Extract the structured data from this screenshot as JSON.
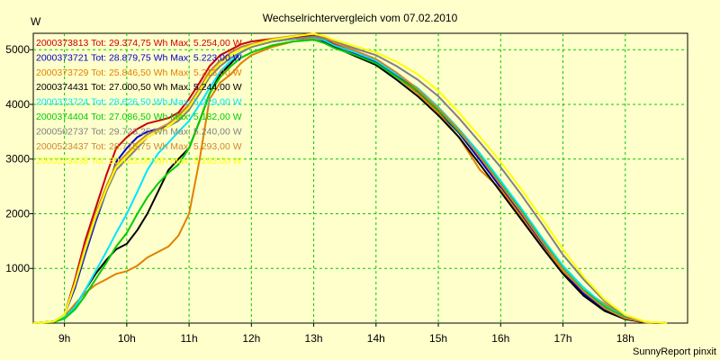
{
  "chart_data": {
    "type": "line",
    "title": "Wechselrichtervergleich vom 07.02.2010",
    "ylabel": "W",
    "xlabel": "",
    "credit": "SunnyReport pinxit",
    "xlim": [
      8.5,
      19.0
    ],
    "ylim": [
      0,
      5300
    ],
    "x_ticks": [
      9,
      10,
      11,
      12,
      13,
      14,
      15,
      16,
      17,
      18
    ],
    "x_tick_labels": [
      "9h",
      "10h",
      "11h",
      "12h",
      "13h",
      "14h",
      "15h",
      "16h",
      "17h",
      "18h"
    ],
    "y_ticks": [
      1000,
      2000,
      3000,
      4000,
      5000
    ],
    "y_tick_labels": [
      "1000",
      "2000",
      "3000",
      "4000",
      "5000"
    ],
    "grid": true,
    "legend_position": "top-left",
    "series": [
      {
        "name": "2000373813 Tot: 29.374,75 Wh Max: 5.254,00 W",
        "color": "#cc0000",
        "x": [
          8.5,
          8.83,
          9.0,
          9.17,
          9.33,
          9.5,
          9.67,
          9.83,
          10.0,
          10.17,
          10.33,
          10.5,
          10.67,
          10.83,
          11.0,
          11.17,
          11.33,
          11.5,
          11.67,
          11.83,
          12.0,
          12.33,
          12.67,
          13.0,
          13.17,
          13.33,
          13.67,
          14.0,
          14.33,
          14.67,
          15.0,
          15.33,
          15.67,
          16.0,
          16.33,
          16.67,
          17.0,
          17.33,
          17.67,
          18.0,
          18.33,
          18.67
        ],
        "y": [
          0,
          30,
          150,
          800,
          1500,
          2100,
          2700,
          3200,
          3400,
          3550,
          3650,
          3700,
          3750,
          3850,
          4100,
          4400,
          4700,
          4900,
          5000,
          5100,
          5150,
          5200,
          5230,
          5254,
          5200,
          5100,
          4950,
          4800,
          4550,
          4250,
          3900,
          3500,
          3000,
          2500,
          2000,
          1450,
          950,
          550,
          250,
          80,
          10,
          0
        ]
      },
      {
        "name": "2000373721 Tot: 28.879,75 Wh Max: 5.223,00 W",
        "color": "#0000cc",
        "x": [
          8.5,
          8.83,
          9.0,
          9.17,
          9.33,
          9.5,
          9.67,
          9.83,
          10.0,
          10.17,
          10.33,
          10.5,
          10.67,
          10.83,
          11.0,
          11.17,
          11.33,
          11.5,
          11.67,
          11.83,
          12.0,
          12.33,
          12.67,
          13.0,
          13.17,
          13.33,
          13.67,
          14.0,
          14.33,
          14.67,
          15.0,
          15.33,
          15.67,
          16.0,
          16.33,
          16.67,
          17.0,
          17.33,
          17.67,
          18.0,
          18.33,
          18.67
        ],
        "y": [
          0,
          30,
          150,
          650,
          1250,
          1850,
          2400,
          2950,
          3200,
          3400,
          3500,
          3550,
          3600,
          3750,
          4000,
          4300,
          4600,
          4800,
          4950,
          5050,
          5100,
          5150,
          5200,
          5223,
          5180,
          5080,
          4930,
          4780,
          4520,
          4220,
          3870,
          3480,
          2980,
          2480,
          1980,
          1430,
          930,
          540,
          240,
          70,
          10,
          0
        ]
      },
      {
        "name": "2000373729 Tot: 25.846,50 Wh Max: 5.213,00 W",
        "color": "#e08000",
        "x": [
          8.5,
          8.83,
          9.0,
          9.17,
          9.33,
          9.5,
          9.67,
          9.83,
          10.0,
          10.17,
          10.33,
          10.5,
          10.67,
          10.83,
          11.0,
          11.17,
          11.33,
          11.5,
          11.67,
          11.83,
          12.0,
          12.33,
          12.67,
          13.0,
          13.17,
          13.33,
          13.67,
          14.0,
          14.33,
          14.67,
          15.0,
          15.33,
          15.67,
          16.0,
          16.33,
          16.67,
          17.0,
          17.33,
          17.67,
          18.0,
          18.33,
          18.67
        ],
        "y": [
          0,
          30,
          120,
          350,
          550,
          700,
          800,
          900,
          950,
          1050,
          1200,
          1300,
          1400,
          1600,
          2000,
          3000,
          4100,
          4400,
          4550,
          4750,
          4900,
          5050,
          5150,
          5213,
          5150,
          5050,
          4900,
          4750,
          4500,
          4200,
          3850,
          3400,
          2800,
          2450,
          1950,
          1400,
          950,
          600,
          350,
          120,
          20,
          0
        ]
      },
      {
        "name": "2000374431 Tot: 27.000,50 Wh Max: 5.244,00 W",
        "color": "#000000",
        "x": [
          8.5,
          8.83,
          9.0,
          9.17,
          9.33,
          9.5,
          9.67,
          9.83,
          10.0,
          10.17,
          10.33,
          10.5,
          10.67,
          10.83,
          11.0,
          11.17,
          11.33,
          11.5,
          11.67,
          11.83,
          12.0,
          12.33,
          12.67,
          13.0,
          13.17,
          13.33,
          13.67,
          14.0,
          14.33,
          14.67,
          15.0,
          15.33,
          15.67,
          16.0,
          16.33,
          16.67,
          17.0,
          17.33,
          17.67,
          18.0,
          18.33,
          18.67
        ],
        "y": [
          0,
          30,
          100,
          300,
          600,
          900,
          1150,
          1350,
          1450,
          1700,
          2000,
          2400,
          2800,
          3000,
          3200,
          3700,
          4200,
          4550,
          4750,
          4950,
          5050,
          5150,
          5200,
          5244,
          5150,
          5050,
          4880,
          4720,
          4450,
          4150,
          3800,
          3400,
          2900,
          2400,
          1900,
          1380,
          900,
          500,
          220,
          70,
          10,
          0
        ]
      },
      {
        "name": "2000373724 Tot: 28.626,50 Wh Max: 5.229,00 W",
        "color": "#00e5ff",
        "x": [
          8.5,
          8.83,
          9.0,
          9.17,
          9.33,
          9.5,
          9.67,
          9.83,
          10.0,
          10.17,
          10.33,
          10.5,
          10.67,
          10.83,
          11.0,
          11.17,
          11.33,
          11.5,
          11.67,
          11.83,
          12.0,
          12.33,
          12.67,
          13.0,
          13.17,
          13.33,
          13.67,
          14.0,
          14.33,
          14.67,
          15.0,
          15.33,
          15.67,
          16.0,
          16.33,
          16.67,
          17.0,
          17.33,
          17.67,
          18.0,
          18.33,
          18.67
        ],
        "y": [
          0,
          30,
          100,
          300,
          600,
          950,
          1300,
          1650,
          2000,
          2400,
          2800,
          3100,
          3300,
          3500,
          3700,
          4000,
          4300,
          4600,
          4800,
          4950,
          5050,
          5150,
          5200,
          5229,
          5170,
          5080,
          4950,
          4800,
          4550,
          4300,
          3950,
          3550,
          3100,
          2600,
          2100,
          1550,
          1050,
          650,
          320,
          110,
          20,
          0
        ]
      },
      {
        "name": "2000374404 Tot: 27.086,50 Wh Max: 5.182,00 W",
        "color": "#00cc00",
        "x": [
          8.5,
          8.83,
          9.0,
          9.17,
          9.33,
          9.5,
          9.67,
          9.83,
          10.0,
          10.17,
          10.33,
          10.5,
          10.67,
          10.83,
          11.0,
          11.17,
          11.33,
          11.5,
          11.67,
          11.83,
          12.0,
          12.33,
          12.67,
          13.0,
          13.17,
          13.33,
          13.67,
          14.0,
          14.33,
          14.67,
          15.0,
          15.33,
          15.67,
          16.0,
          16.33,
          16.67,
          17.0,
          17.33,
          17.67,
          18.0,
          18.33,
          18.67
        ],
        "y": [
          0,
          20,
          80,
          250,
          500,
          800,
          1100,
          1400,
          1650,
          2000,
          2300,
          2550,
          2750,
          2900,
          3200,
          3700,
          4200,
          4500,
          4700,
          4850,
          4950,
          5080,
          5150,
          5182,
          5120,
          5030,
          4900,
          4750,
          4500,
          4250,
          3900,
          3500,
          3050,
          2550,
          2050,
          1500,
          1000,
          600,
          300,
          100,
          15,
          0
        ]
      },
      {
        "name": "2000502737 Tot: 29.723,25 Wh Max: 5.240,00 W",
        "color": "#808080",
        "x": [
          8.5,
          8.83,
          9.0,
          9.17,
          9.33,
          9.5,
          9.67,
          9.83,
          10.0,
          10.17,
          10.33,
          10.5,
          10.67,
          10.83,
          11.0,
          11.17,
          11.33,
          11.5,
          11.67,
          11.83,
          12.0,
          12.33,
          12.67,
          13.0,
          13.17,
          13.33,
          13.67,
          14.0,
          14.33,
          14.67,
          15.0,
          15.33,
          15.67,
          16.0,
          16.33,
          16.67,
          17.0,
          17.33,
          17.67,
          18.0,
          18.33,
          18.67
        ],
        "y": [
          0,
          30,
          150,
          700,
          1300,
          1900,
          2400,
          2800,
          3000,
          3200,
          3400,
          3500,
          3600,
          3700,
          3900,
          4200,
          4500,
          4700,
          4850,
          4950,
          5050,
          5150,
          5200,
          5240,
          5200,
          5150,
          5020,
          4900,
          4700,
          4450,
          4150,
          3750,
          3300,
          2850,
          2350,
          1800,
          1250,
          800,
          400,
          130,
          20,
          0
        ]
      },
      {
        "name": "2000523437 Tot: 28.775,75 Wh Max: 5.293,00 W",
        "color": "#cc8833",
        "x": [
          8.5,
          8.83,
          9.0,
          9.17,
          9.33,
          9.5,
          9.67,
          9.83,
          10.0,
          10.17,
          10.33,
          10.5,
          10.67,
          10.83,
          11.0,
          11.17,
          11.33,
          11.5,
          11.67,
          11.83,
          12.0,
          12.33,
          12.67,
          13.0,
          13.17,
          13.33,
          13.67,
          14.0,
          14.33,
          14.67,
          15.0,
          15.33,
          15.67,
          16.0,
          16.33,
          16.67,
          17.0,
          17.33,
          17.67,
          18.0,
          18.33,
          18.67
        ],
        "y": [
          0,
          30,
          150,
          750,
          1400,
          2000,
          2500,
          2900,
          3100,
          3300,
          3450,
          3550,
          3650,
          3800,
          4000,
          4300,
          4600,
          4800,
          4950,
          5050,
          5100,
          5200,
          5250,
          5293,
          5230,
          5130,
          4980,
          4830,
          4580,
          4280,
          3930,
          3530,
          3030,
          2530,
          2030,
          1480,
          980,
          580,
          270,
          85,
          15,
          0
        ]
      },
      {
        "name": "2000523438 Tot: 30.163,00 Wh Max: 5.293,00 W",
        "color": "#ffff00",
        "x": [
          8.5,
          8.83,
          9.0,
          9.17,
          9.33,
          9.5,
          9.67,
          9.83,
          10.0,
          10.17,
          10.33,
          10.5,
          10.67,
          10.83,
          11.0,
          11.17,
          11.33,
          11.5,
          11.67,
          11.83,
          12.0,
          12.33,
          12.67,
          13.0,
          13.17,
          13.33,
          13.67,
          14.0,
          14.33,
          14.67,
          15.0,
          15.33,
          15.67,
          16.0,
          16.33,
          16.67,
          17.0,
          17.33,
          17.67,
          18.0,
          18.33,
          18.67
        ],
        "y": [
          0,
          30,
          150,
          720,
          1350,
          1950,
          2450,
          2850,
          3050,
          3250,
          3400,
          3500,
          3600,
          3750,
          3950,
          4250,
          4550,
          4750,
          4900,
          5000,
          5080,
          5180,
          5240,
          5293,
          5250,
          5180,
          5060,
          4950,
          4780,
          4550,
          4250,
          3850,
          3400,
          2950,
          2450,
          1900,
          1350,
          850,
          430,
          150,
          25,
          0
        ]
      }
    ]
  }
}
